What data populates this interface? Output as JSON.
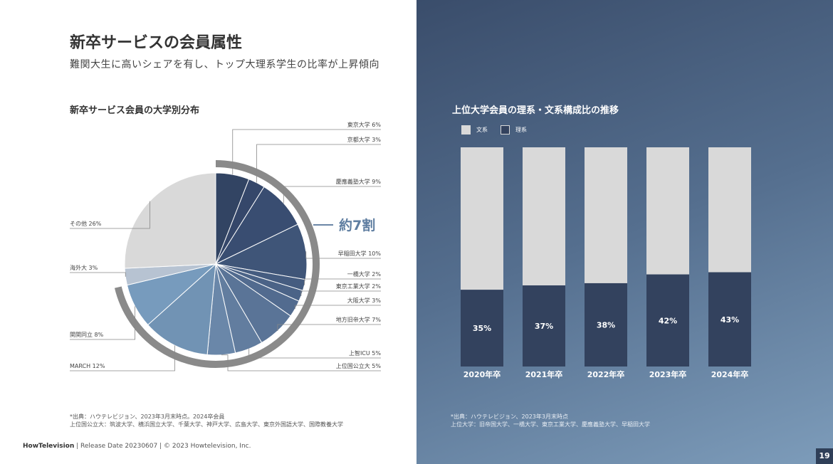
{
  "header": {
    "title": "新卒サービスの会員属性",
    "subtitle": "難関大生に高いシェアを有し、トップ大理系学生の比率が上昇傾向"
  },
  "pie": {
    "title": "新卒サービス会員の大学別分布",
    "highlight_label": "約7割"
  },
  "bars": {
    "title": "上位大学会員の理系・文系構成比の推移"
  },
  "chart_data": [
    {
      "type": "pie",
      "title": "新卒サービス会員の大学別分布",
      "slices": [
        {
          "label": "東京大学",
          "display": "東京大学 6%",
          "value": 6,
          "color": "#324463"
        },
        {
          "label": "京都大学",
          "display": "京都大学 3%",
          "value": 3,
          "color": "#35476a"
        },
        {
          "label": "慶應義塾大学",
          "display": "慶應義塾大学 9%",
          "value": 9,
          "color": "#394d71"
        },
        {
          "label": "早稲田大学",
          "display": "早稲田大学 10%",
          "value": 10,
          "color": "#3f5578"
        },
        {
          "label": "一橋大学",
          "display": "一橋大学 2%",
          "value": 2,
          "color": "#455c80"
        },
        {
          "label": "東京工業大学",
          "display": "東京工業大学 2%",
          "value": 2,
          "color": "#4b6387"
        },
        {
          "label": "大阪大学",
          "display": "大阪大学 3%",
          "value": 3,
          "color": "#526b8f"
        },
        {
          "label": "地方旧帝大学",
          "display": "地方旧帝大学 7%",
          "value": 7,
          "color": "#5a7497"
        },
        {
          "label": "上智ICU",
          "display": "上智ICU 5%",
          "value": 5,
          "color": "#627d9f"
        },
        {
          "label": "上位国公立大",
          "display": "上位国公立大 5%",
          "value": 5,
          "color": "#6a87a9"
        },
        {
          "label": "MARCH",
          "display": "MARCH 12%",
          "value": 12,
          "color": "#7193b4"
        },
        {
          "label": "関関同立",
          "display": "関関同立 8%",
          "value": 8,
          "color": "#779bbd"
        },
        {
          "label": "海外大",
          "display": "海外大 3%",
          "value": 3,
          "color": "#b7c3d2"
        },
        {
          "label": "その他",
          "display": "その他 26%",
          "value": 26,
          "color": "#d9d9d9"
        }
      ],
      "highlight": {
        "label": "約7割",
        "from": "東京大学",
        "to": "関関同立"
      }
    },
    {
      "type": "bar",
      "stacked": true,
      "title": "上位大学会員の理系・文系構成比の推移",
      "categories": [
        "2020年卒",
        "2021年卒",
        "2022年卒",
        "2023年卒",
        "2024年卒"
      ],
      "series": [
        {
          "name": "理系",
          "values": [
            35,
            37,
            38,
            42,
            43
          ],
          "labels": [
            "35%",
            "37%",
            "38%",
            "42%",
            "43%"
          ],
          "color": "#33425e"
        },
        {
          "name": "文系",
          "values": [
            65,
            63,
            62,
            58,
            57
          ],
          "color": "#d9d9d9"
        }
      ],
      "ylim": [
        0,
        100
      ],
      "legend": "top-left"
    }
  ],
  "notes": {
    "left": [
      "*出典：ハウテレビジョン、2023年3月末時点。2024卒会員",
      "上位国公立大：筑波大学、横浜国立大学、千葉大学、神戸大学、広島大学、東京外国語大学、国際教養大学"
    ],
    "right": [
      "*出典：ハウテレビジョン、2023年3月末時点",
      "上位大学：旧帝国大学、一橋大学、東京工業大学、慶應義塾大学、早稲田大学"
    ]
  },
  "footer": {
    "brand": "HowTelevision",
    "text": " | Release Date 20230607 | © 2023 Howtelevision, Inc.",
    "page": "19"
  }
}
